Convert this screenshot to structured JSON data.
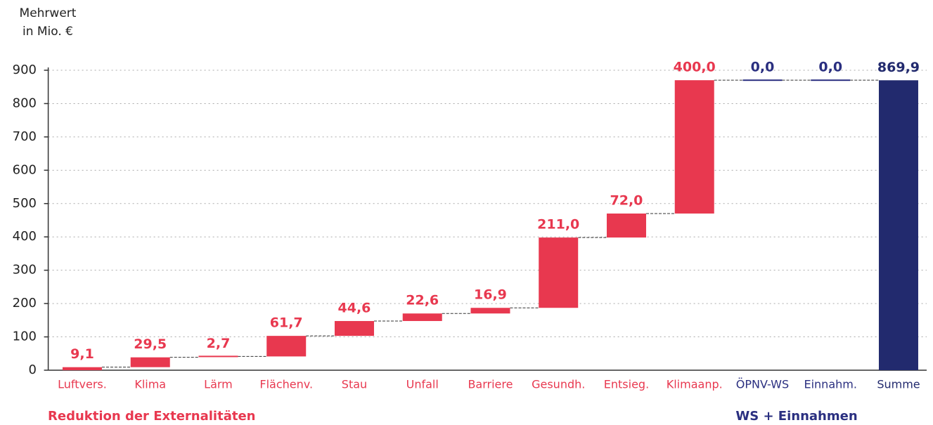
{
  "chart_data": {
    "type": "waterfall",
    "ylabel": [
      "Mehrwert",
      "in Mio. €"
    ],
    "categories": [
      "Luftvers.",
      "Klima",
      "Lärm",
      "Flächenv.",
      "Stau",
      "Unfall",
      "Barriere",
      "Gesundh.",
      "Entsieg.",
      "Klimaanp.",
      "ÖPNV-WS",
      "Einnahm.",
      "Summe"
    ],
    "values": [
      9.1,
      29.5,
      2.7,
      61.7,
      44.6,
      22.6,
      16.9,
      211.0,
      72.0,
      400.0,
      0.0,
      0.0,
      869.9
    ],
    "value_labels": [
      "9,1",
      "29,5",
      "2,7",
      "61,7",
      "44,6",
      "22,6",
      "16,9",
      "211,0",
      "72,0",
      "400,0",
      "0,0",
      "0,0",
      "869,9"
    ],
    "is_total": [
      false,
      false,
      false,
      false,
      false,
      false,
      false,
      false,
      false,
      false,
      false,
      false,
      true
    ],
    "colors": [
      "#e8384f",
      "#e8384f",
      "#e8384f",
      "#e8384f",
      "#e8384f",
      "#e8384f",
      "#e8384f",
      "#e8384f",
      "#e8384f",
      "#e8384f",
      "#2a2f80",
      "#2a2f80",
      "#222a6e"
    ],
    "groups": [
      {
        "label": "Reduktion der Externalitäten",
        "color": "#e8384f"
      },
      {
        "label": "WS + Einnahmen",
        "color": "#2a2f80"
      }
    ],
    "ylim": [
      0,
      900
    ],
    "yticks": [
      0,
      100,
      200,
      300,
      400,
      500,
      600,
      700,
      800,
      900
    ],
    "grid": true
  }
}
